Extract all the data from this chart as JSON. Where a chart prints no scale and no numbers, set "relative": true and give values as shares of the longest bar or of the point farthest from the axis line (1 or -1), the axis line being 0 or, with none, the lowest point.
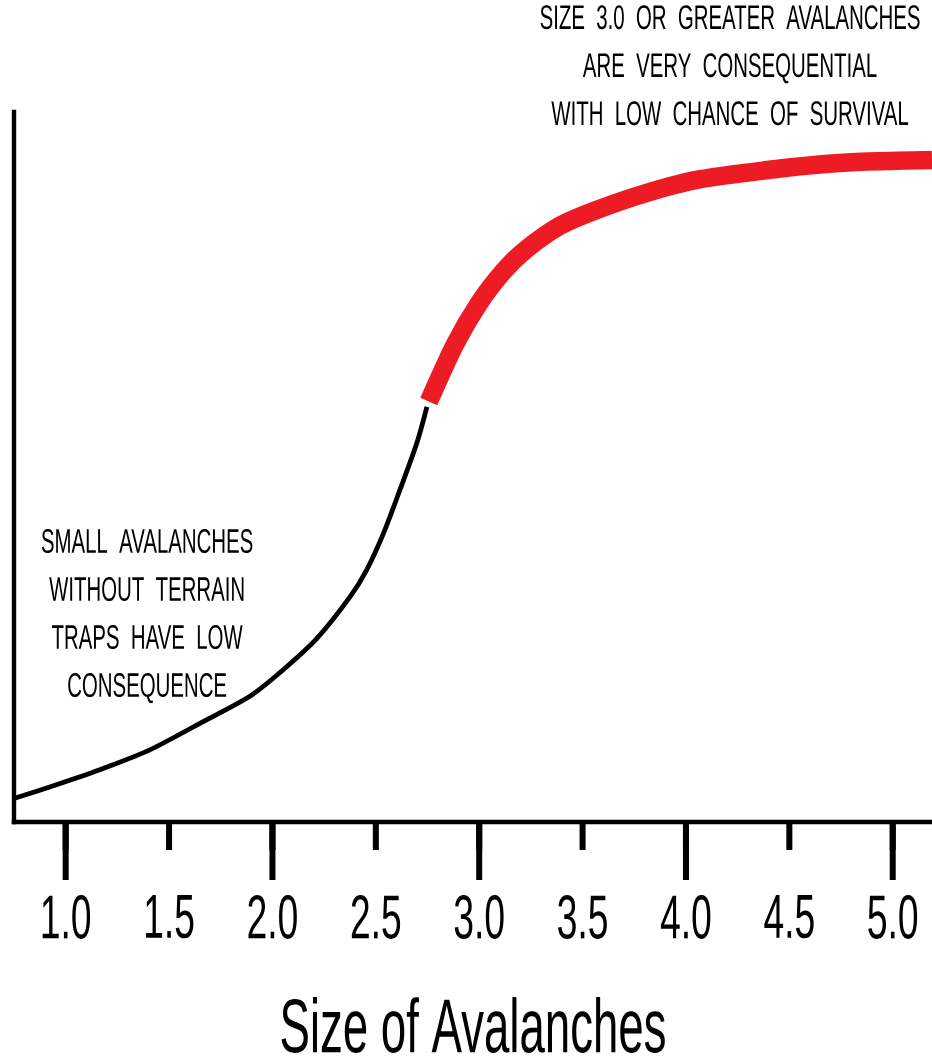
{
  "chart_data": {
    "type": "line",
    "relative": true,
    "xlabel": "Size of Avalanches",
    "annotations": [
      "SIZE 3.0 OR GREATER AVALANCHES ARE VERY CONSEQUENTIAL WITH LOW CHANCE OF SURVIVAL",
      "SMALL AVALANCHES WITHOUT TERRAIN TRAPS HAVE LOW CONSEQUENCE"
    ],
    "xlim": [
      0.75,
      5.19
    ],
    "xticks": [
      {
        "value": 1,
        "label": "1.0"
      },
      1.5,
      {
        "value": 2,
        "label": "2.0"
      },
      2.5,
      {
        "value": 3,
        "label": "3.0"
      },
      3.5,
      {
        "value": 4,
        "label": "4.0"
      },
      4.5,
      {
        "value": 5,
        "label": "5.0"
      }
    ],
    "series": [
      {
        "color": "#000000",
        "x": [
          0.753,
          0.923,
          1.165,
          1.407,
          1.649,
          1.891,
          2.052,
          2.214,
          2.375,
          2.456,
          2.537,
          2.617,
          2.698,
          2.747
        ],
        "values": [
          0.036,
          0.053,
          0.079,
          0.109,
          0.149,
          0.19,
          0.23,
          0.277,
          0.34,
          0.381,
          0.436,
          0.502,
          0.572,
          0.627
        ]
      },
      {
        "color": "#ed1c24",
        "x": [
          2.756,
          2.882,
          3.0,
          3.118,
          3.219,
          3.387,
          3.555,
          3.807,
          4.07,
          4.427,
          4.674,
          4.92,
          5.19
        ],
        "values": [
          0.635,
          0.721,
          0.784,
          0.832,
          0.863,
          0.9,
          0.923,
          0.95,
          0.971,
          0.986,
          0.994,
          0.998,
          1.0
        ]
      }
    ]
  }
}
